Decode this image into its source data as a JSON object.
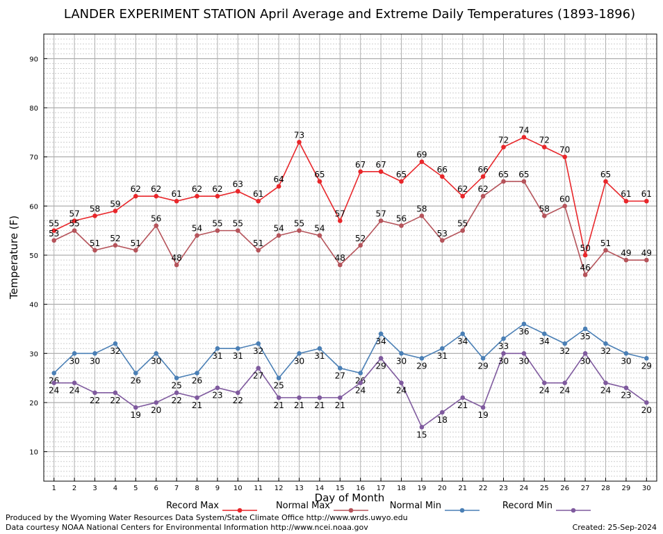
{
  "chart_data": {
    "type": "line",
    "title": "LANDER EXPERIMENT STATION April Average and Extreme Daily Temperatures (1893-1896)",
    "xlabel": "Day of Month",
    "ylabel": "Temperature (F)",
    "xlim": [
      0.5,
      30.5
    ],
    "ylim": [
      4,
      95
    ],
    "yticks": [
      10,
      20,
      30,
      40,
      50,
      60,
      70,
      80,
      90
    ],
    "x": [
      1,
      2,
      3,
      4,
      5,
      6,
      7,
      8,
      9,
      10,
      11,
      12,
      13,
      14,
      15,
      16,
      17,
      18,
      19,
      20,
      21,
      22,
      23,
      24,
      25,
      26,
      27,
      28,
      29,
      30
    ],
    "grid": true,
    "legend_position": "bottom",
    "series": [
      {
        "name": "Record Max",
        "color": "#e8262a",
        "values": [
          55,
          57,
          58,
          59,
          62,
          62,
          61,
          62,
          62,
          63,
          61,
          64,
          73,
          65,
          57,
          67,
          67,
          65,
          69,
          66,
          62,
          66,
          72,
          74,
          72,
          70,
          50,
          65,
          61,
          61
        ]
      },
      {
        "name": "Normal Max",
        "color": "#b5535a",
        "values": [
          53,
          55,
          51,
          52,
          51,
          56,
          48,
          54,
          55,
          55,
          51,
          54,
          55,
          54,
          48,
          52,
          57,
          56,
          58,
          53,
          55,
          62,
          65,
          65,
          58,
          60,
          46,
          51,
          49,
          49
        ]
      },
      {
        "name": "Normal Min",
        "color": "#4a7fb5",
        "values": [
          26,
          30,
          30,
          32,
          26,
          30,
          25,
          26,
          31,
          31,
          32,
          25,
          30,
          31,
          27,
          26,
          34,
          30,
          29,
          31,
          34,
          29,
          33,
          36,
          34,
          32,
          35,
          32,
          30,
          29
        ]
      },
      {
        "name": "Record Min",
        "color": "#7f5a9e",
        "values": [
          24,
          24,
          22,
          22,
          19,
          20,
          22,
          21,
          23,
          22,
          27,
          21,
          21,
          21,
          21,
          24,
          29,
          24,
          15,
          18,
          21,
          19,
          30,
          30,
          24,
          24,
          30,
          24,
          23,
          20
        ]
      }
    ]
  },
  "footer": {
    "left_line1": "Produced by the Wyoming Water Resources Data System/State Climate Office http://www.wrds.uwyo.edu",
    "left_line2": "Data courtesy NOAA National Centers for Environmental Information http://www.ncei.noaa.gov",
    "created": "Created:  25-Sep-2024"
  }
}
